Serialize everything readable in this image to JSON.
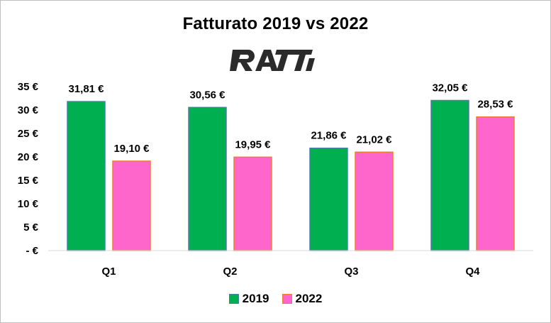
{
  "chart_data": {
    "type": "bar",
    "title": "Fatturato  2019 vs 2022",
    "logo_text": "RATTI",
    "categories": [
      "Q1",
      "Q2",
      "Q3",
      "Q4"
    ],
    "series": [
      {
        "name": "2019",
        "values": [
          31.81,
          30.56,
          21.86,
          32.05
        ],
        "labels": [
          "31,81 €",
          "30,56 €",
          "21,86 €",
          "32,05 €"
        ],
        "color": "#00b050",
        "border_color": "#4a7ea5"
      },
      {
        "name": "2022",
        "values": [
          19.1,
          19.95,
          21.02,
          28.53
        ],
        "labels": [
          "19,10 €",
          "19,95 €",
          "21,02 €",
          "28,53 €"
        ],
        "color": "#ff66cc",
        "border_color": "#ed7d31"
      }
    ],
    "ylim": [
      0,
      35
    ],
    "yticks": [
      {
        "value": 35,
        "label": "35 €"
      },
      {
        "value": 30,
        "label": "30 €"
      },
      {
        "value": 25,
        "label": "25 €"
      },
      {
        "value": 20,
        "label": "20 €"
      },
      {
        "value": 15,
        "label": "15 €"
      },
      {
        "value": 10,
        "label": "10 €"
      },
      {
        "value": 5,
        "label": "5 €"
      },
      {
        "value": 0,
        "label": "- €"
      }
    ],
    "xlabel": "",
    "ylabel": "",
    "grid": false,
    "legend_position": "bottom"
  }
}
